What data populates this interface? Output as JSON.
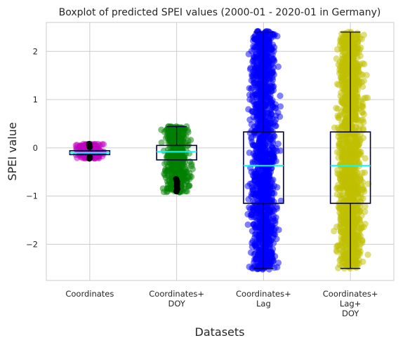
{
  "chart_data": {
    "type": "boxplot",
    "title": "Boxplot of predicted SPEI values (2000-01 - 2020-01 in Germany)",
    "xlabel": "Datasets",
    "ylabel": "SPEI value",
    "ylim": [
      -2.75,
      2.6
    ],
    "yticks": [
      -2,
      -1,
      0,
      1,
      2
    ],
    "ytick_labels": [
      "−2",
      "−1",
      "0",
      "1",
      "2"
    ],
    "grid": true,
    "categories": [
      [
        "Coordinates"
      ],
      [
        "Coordinates+",
        "DOY"
      ],
      [
        "Coordinates+",
        "Lag"
      ],
      [
        "Coordinates+",
        "Lag+",
        "DOY"
      ]
    ],
    "series": [
      {
        "color": "#c000c0",
        "jitter_range": [
          -0.22,
          0.08
        ],
        "whisker_low": -0.14,
        "q1": -0.14,
        "median": -0.1,
        "q3": -0.06,
        "whisker_high": -0.06,
        "outliers": [
          0.02,
          0.05,
          0.08,
          -0.2,
          -0.22
        ]
      },
      {
        "color": "#008000",
        "jitter_range": [
          -0.92,
          0.45
        ],
        "whisker_low": -0.25,
        "q1": -0.25,
        "median": -0.08,
        "q3": 0.05,
        "whisker_high": 0.44,
        "outliers": [
          -0.65,
          -0.7,
          -0.75,
          -0.8,
          -0.85,
          -0.9
        ]
      },
      {
        "color": "#0000ff",
        "jitter_range": [
          -2.52,
          2.42
        ],
        "whisker_low": -2.5,
        "q1": -1.15,
        "median": -0.37,
        "q3": 0.33,
        "whisker_high": 2.4,
        "outliers": []
      },
      {
        "color": "#bfbf00",
        "jitter_range": [
          -2.5,
          2.4
        ],
        "whisker_low": -2.5,
        "q1": -1.15,
        "median": -0.37,
        "q3": 0.33,
        "whisker_high": 2.4,
        "outliers": []
      }
    ],
    "median_color": "#00ffff",
    "box_color": "#000040"
  }
}
